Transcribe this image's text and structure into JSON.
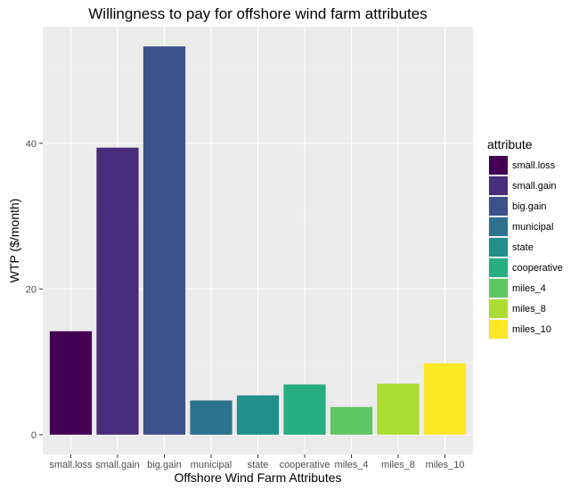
{
  "chart_data": {
    "type": "bar",
    "title": "Willingness to pay for offshore wind farm attributes",
    "xlabel": "Offshore Wind Farm Attributes",
    "ylabel": "WTP ($/month)",
    "categories": [
      "small.loss",
      "small.gain",
      "big.gain",
      "municipal",
      "state",
      "cooperative",
      "miles_4",
      "miles_8",
      "miles_10"
    ],
    "values": [
      14.2,
      39.4,
      53.3,
      4.7,
      5.4,
      6.9,
      3.8,
      7.0,
      9.8
    ],
    "colors": [
      "#440154",
      "#472D7B",
      "#3B528B",
      "#2C728E",
      "#21908C",
      "#27AD81",
      "#5DC863",
      "#AADC32",
      "#FDE725"
    ],
    "yticks": [
      0,
      20,
      40
    ],
    "ylim": [
      -2.7,
      56.0
    ],
    "grid": true,
    "legend": {
      "title": "attribute",
      "position": "right"
    }
  }
}
